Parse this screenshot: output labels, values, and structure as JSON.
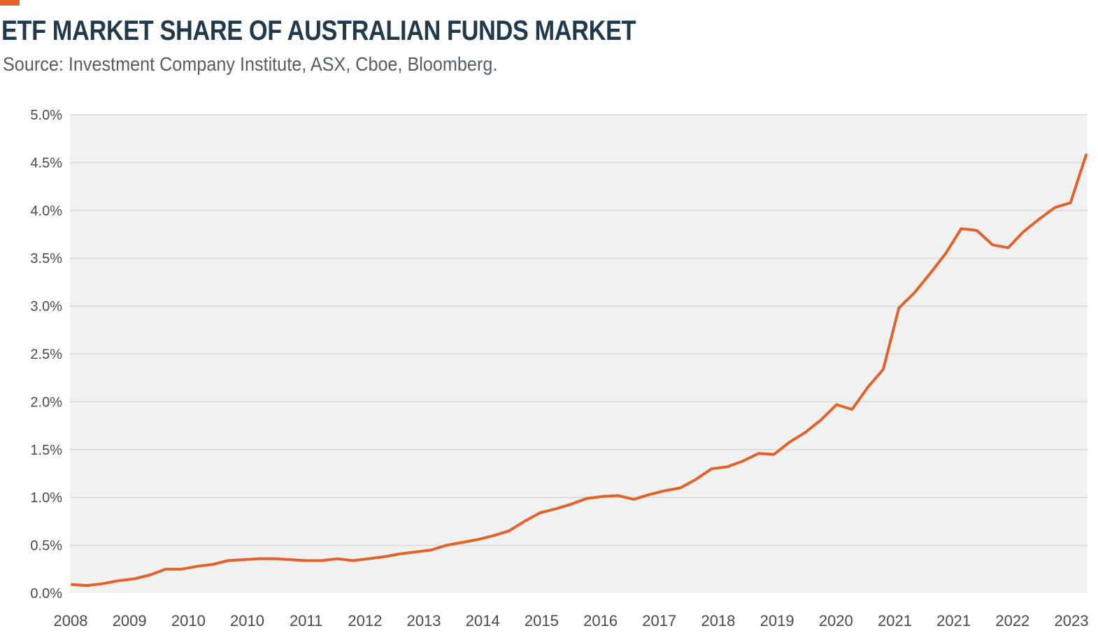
{
  "header": {
    "title": "ETF MARKET SHARE OF AUSTRALIAN FUNDS MARKET",
    "source": "Source: Investment Company Institute, ASX, Cboe, Bloomberg."
  },
  "colors": {
    "accent": "#e0632a",
    "line": "#e0632a",
    "plot_bg": "#f1f1f1",
    "grid": "#d7d7d7",
    "title": "#1f3a4d",
    "tick_text": "#4a4a4a"
  },
  "chart_data": {
    "type": "line",
    "title": "ETF MARKET SHARE OF AUSTRALIAN FUNDS MARKET",
    "xlabel": "",
    "ylabel": "",
    "ylim": [
      0,
      5.0
    ],
    "grid": true,
    "legend": "none",
    "y_ticks": [
      "0.0%",
      "0.5%",
      "1.0%",
      "1.5%",
      "2.0%",
      "2.5%",
      "3.0%",
      "3.5%",
      "4.0%",
      "4.5%",
      "5.0%"
    ],
    "y_tick_values": [
      0,
      0.5,
      1.0,
      1.5,
      2.0,
      2.5,
      3.0,
      3.5,
      4.0,
      4.5,
      5.0
    ],
    "x_ticks": [
      "2008",
      "2009",
      "2010",
      "2010",
      "2011",
      "2012",
      "2013",
      "2014",
      "2015",
      "2016",
      "2017",
      "2018",
      "2019",
      "2020",
      "2021",
      "2021",
      "2022",
      "2023"
    ],
    "series": [
      {
        "values": [
          0.09,
          0.08,
          0.1,
          0.13,
          0.15,
          0.19,
          0.25,
          0.25,
          0.28,
          0.3,
          0.34,
          0.35,
          0.36,
          0.36,
          0.35,
          0.34,
          0.34,
          0.36,
          0.34,
          0.36,
          0.38,
          0.41,
          0.43,
          0.45,
          0.5,
          0.53,
          0.56,
          0.6,
          0.65,
          0.75,
          0.84,
          0.88,
          0.93,
          0.99,
          1.01,
          1.02,
          0.98,
          1.03,
          1.07,
          1.1,
          1.19,
          1.3,
          1.32,
          1.38,
          1.46,
          1.45,
          1.58,
          1.68,
          1.81,
          1.97,
          1.92,
          2.15,
          2.34,
          2.98,
          3.14,
          3.34,
          3.55,
          3.81,
          3.79,
          3.64,
          3.61,
          3.78,
          3.91,
          4.03,
          4.08,
          4.58
        ]
      }
    ]
  }
}
